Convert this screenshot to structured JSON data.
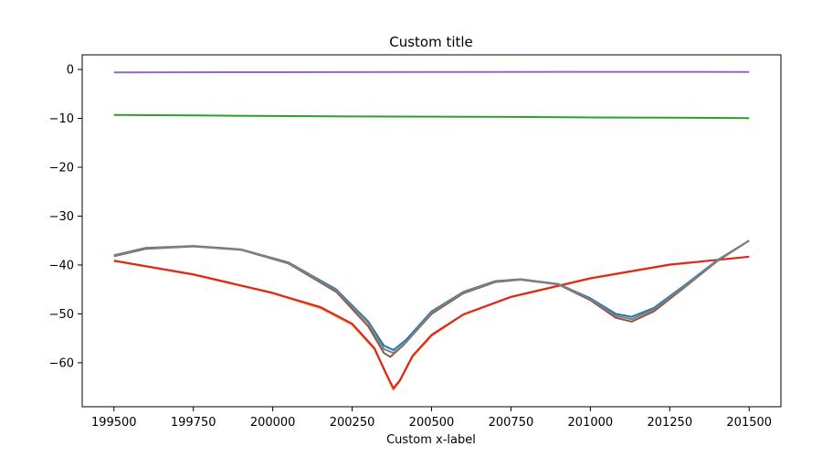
{
  "chart_data": {
    "type": "line",
    "title": "Custom title",
    "xlabel": "Custom x-label",
    "ylabel": "",
    "xlim": [
      199400,
      201600
    ],
    "ylim": [
      -69,
      3
    ],
    "xticks": [
      199500,
      199750,
      200000,
      200250,
      200500,
      200750,
      201000,
      201250,
      201500
    ],
    "yticks": [
      0,
      -10,
      -20,
      -30,
      -40,
      -50,
      -60
    ],
    "grid": false,
    "legend": "none",
    "series": [
      {
        "color": "#9467bd",
        "x": [
          199500,
          200000,
          200500,
          201000,
          201500
        ],
        "y": [
          -0.6,
          -0.55,
          -0.5,
          -0.48,
          -0.5
        ]
      },
      {
        "color": "#2ca02c",
        "x": [
          199500,
          199750,
          200000,
          200250,
          200500,
          200750,
          201000,
          201250,
          201500
        ],
        "y": [
          -9.3,
          -9.4,
          -9.5,
          -9.6,
          -9.65,
          -9.7,
          -9.8,
          -9.85,
          -9.95
        ]
      },
      {
        "color": "#ff7f0e",
        "x": [
          199500,
          199750,
          200000,
          200150,
          200250,
          200320,
          200360,
          200380,
          200400,
          200440,
          200500,
          200600,
          200750,
          201000,
          201250,
          201500
        ],
        "y": [
          -39.2,
          -42.0,
          -45.8,
          -48.8,
          -52.2,
          -57.2,
          -62.8,
          -65.5,
          -63.8,
          -58.8,
          -54.5,
          -50.2,
          -46.6,
          -42.8,
          -40.0,
          -38.3
        ]
      },
      {
        "color": "#d62728",
        "x": [
          199500,
          199750,
          200000,
          200150,
          200250,
          200320,
          200360,
          200380,
          200400,
          200440,
          200500,
          200600,
          200750,
          201000,
          201250,
          201500
        ],
        "y": [
          -39.1,
          -41.9,
          -45.7,
          -48.6,
          -52.0,
          -57.0,
          -62.6,
          -65.2,
          -63.6,
          -58.6,
          -54.3,
          -50.1,
          -46.5,
          -42.7,
          -39.9,
          -38.3
        ]
      },
      {
        "color": "#1f77b4",
        "x": [
          199500,
          199600,
          199750,
          199900,
          200050,
          200200,
          200300,
          200350,
          200380,
          200420,
          200500,
          200600,
          200700,
          200780,
          200900,
          201000,
          201080,
          201130,
          201200,
          201300,
          201400,
          201500
        ],
        "y": [
          -38.0,
          -36.5,
          -36.1,
          -36.8,
          -39.5,
          -45.0,
          -51.5,
          -56.5,
          -57.4,
          -55.3,
          -49.5,
          -45.5,
          -43.3,
          -42.9,
          -43.9,
          -46.8,
          -50.0,
          -50.6,
          -48.8,
          -44.0,
          -39.0,
          -35.0
        ]
      },
      {
        "color": "#8c564b",
        "x": [
          199500,
          199600,
          199750,
          199900,
          200050,
          200200,
          200300,
          200350,
          200370,
          200410,
          200500,
          200600,
          200700,
          200780,
          200900,
          201000,
          201080,
          201130,
          201200,
          201300,
          201400,
          201500
        ],
        "y": [
          -38.2,
          -36.7,
          -36.2,
          -36.9,
          -39.7,
          -45.5,
          -52.5,
          -58.0,
          -58.8,
          -56.5,
          -50.0,
          -45.8,
          -43.5,
          -43.0,
          -44.0,
          -47.2,
          -50.8,
          -51.6,
          -49.5,
          -44.4,
          -39.2,
          -35.0
        ]
      },
      {
        "color": "#7f7f7f",
        "x": [
          199500,
          199600,
          199750,
          199900,
          200050,
          200200,
          200300,
          200350,
          200380,
          200420,
          200500,
          200600,
          200700,
          200780,
          200900,
          201000,
          201080,
          201130,
          201200,
          201300,
          201400,
          201500
        ],
        "y": [
          -38.1,
          -36.6,
          -36.15,
          -36.85,
          -39.6,
          -45.2,
          -51.8,
          -57.2,
          -58.0,
          -55.8,
          -49.7,
          -45.6,
          -43.4,
          -42.95,
          -43.95,
          -47.0,
          -50.4,
          -51.1,
          -49.1,
          -44.2,
          -39.1,
          -35.0
        ]
      }
    ]
  }
}
